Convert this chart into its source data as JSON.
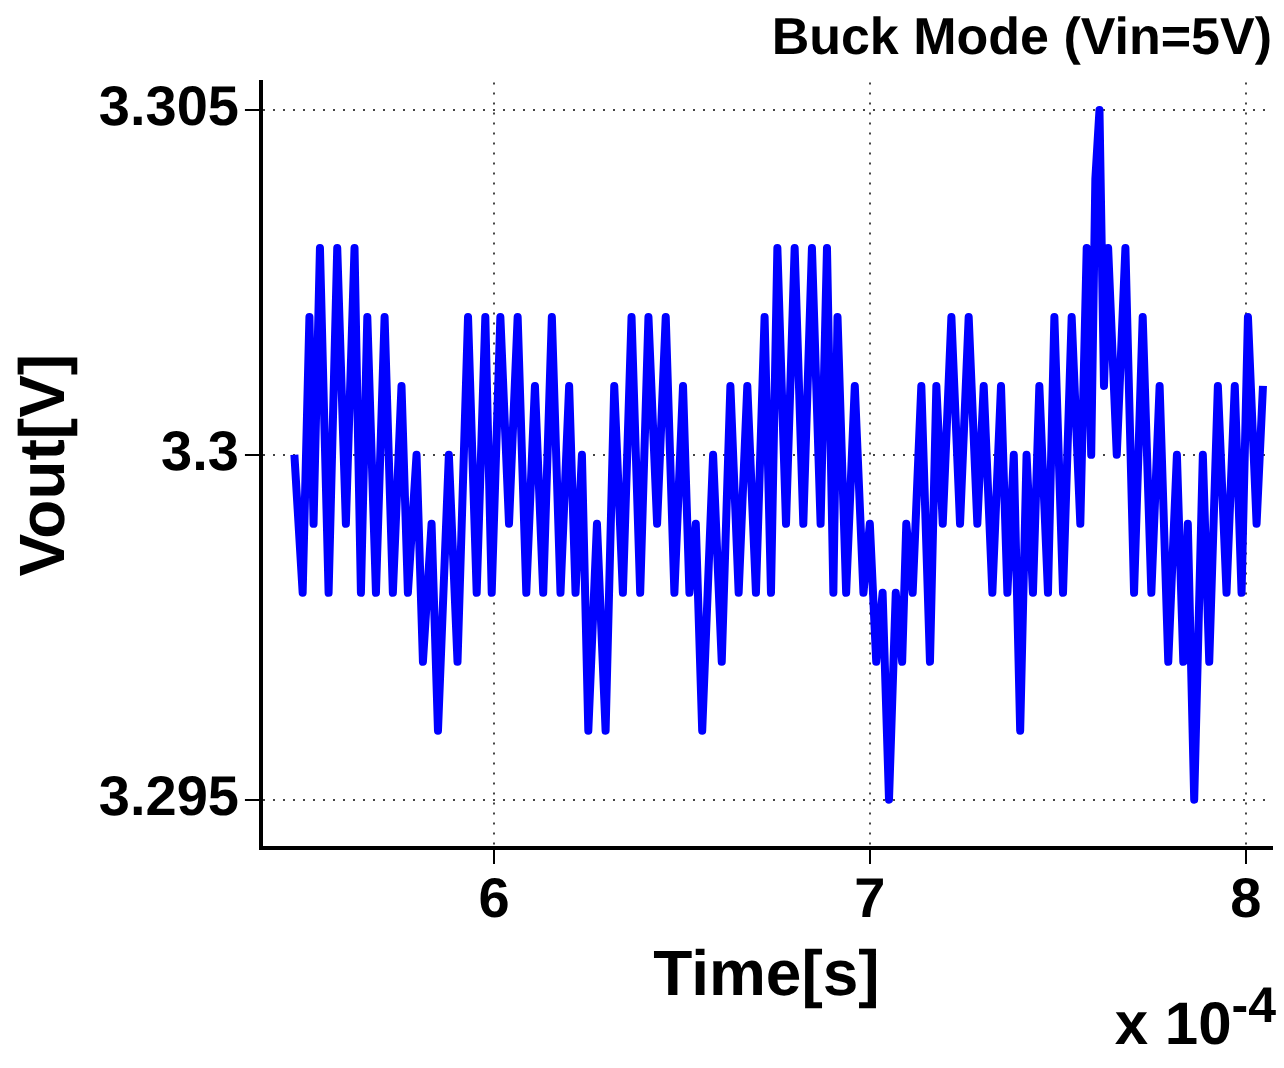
{
  "chart_data": {
    "type": "line",
    "title": "Buck Mode (Vin=5V)",
    "xlabel": "Time[s]",
    "ylabel": "Vout[V]",
    "annotations": [
      "x 10$^{-4}$"
    ],
    "xlim": [
      5.38,
      8.07
    ],
    "xticks": [
      6,
      7,
      8
    ],
    "ylim": [
      3.2943,
      3.3054
    ],
    "yticks": [
      3.295,
      3.3,
      3.305
    ],
    "grid": true,
    "legend": false,
    "marker": "none",
    "line_style": "solid",
    "series": [
      {
        "color": "#0000ff",
        "x": [
          5.469,
          5.491,
          5.509,
          5.52,
          5.537,
          5.56,
          5.583,
          5.606,
          5.629,
          5.646,
          5.663,
          5.686,
          5.709,
          5.731,
          5.754,
          5.771,
          5.794,
          5.811,
          5.834,
          5.851,
          5.88,
          5.903,
          5.931,
          5.954,
          5.977,
          5.994,
          6.017,
          6.04,
          6.063,
          6.086,
          6.109,
          6.131,
          6.154,
          6.177,
          6.2,
          6.217,
          6.234,
          6.251,
          6.274,
          6.297,
          6.32,
          6.343,
          6.366,
          6.389,
          6.411,
          6.434,
          6.457,
          6.48,
          6.503,
          6.52,
          6.537,
          6.554,
          6.583,
          6.606,
          6.629,
          6.651,
          6.674,
          6.697,
          6.72,
          6.737,
          6.754,
          6.777,
          6.8,
          6.823,
          6.846,
          6.869,
          6.886,
          6.903,
          6.914,
          6.937,
          6.96,
          6.983,
          7.0,
          7.017,
          7.034,
          7.051,
          7.069,
          7.086,
          7.097,
          7.114,
          7.137,
          7.16,
          7.177,
          7.194,
          7.217,
          7.24,
          7.263,
          7.286,
          7.303,
          7.326,
          7.349,
          7.366,
          7.383,
          7.4,
          7.417,
          7.434,
          7.451,
          7.474,
          7.491,
          7.514,
          7.537,
          7.56,
          7.577,
          7.589,
          7.6,
          7.611,
          7.623,
          7.634,
          7.657,
          7.68,
          7.703,
          7.726,
          7.749,
          7.771,
          7.794,
          7.817,
          7.834,
          7.846,
          7.863,
          7.886,
          7.903,
          7.926,
          7.949,
          7.971,
          7.989,
          8.006,
          8.029,
          8.046
        ],
        "values": [
          3.3,
          3.298,
          3.302,
          3.299,
          3.303,
          3.298,
          3.303,
          3.299,
          3.303,
          3.298,
          3.302,
          3.298,
          3.302,
          3.298,
          3.301,
          3.298,
          3.3,
          3.297,
          3.299,
          3.296,
          3.3,
          3.297,
          3.302,
          3.298,
          3.302,
          3.298,
          3.302,
          3.299,
          3.302,
          3.298,
          3.301,
          3.298,
          3.302,
          3.298,
          3.301,
          3.298,
          3.3,
          3.296,
          3.299,
          3.296,
          3.301,
          3.298,
          3.302,
          3.298,
          3.302,
          3.299,
          3.302,
          3.298,
          3.301,
          3.298,
          3.299,
          3.296,
          3.3,
          3.297,
          3.301,
          3.298,
          3.301,
          3.298,
          3.302,
          3.298,
          3.303,
          3.299,
          3.303,
          3.299,
          3.303,
          3.299,
          3.303,
          3.298,
          3.302,
          3.298,
          3.301,
          3.298,
          3.299,
          3.297,
          3.298,
          3.295,
          3.298,
          3.297,
          3.299,
          3.298,
          3.301,
          3.297,
          3.301,
          3.299,
          3.302,
          3.299,
          3.302,
          3.299,
          3.301,
          3.298,
          3.301,
          3.298,
          3.3,
          3.296,
          3.3,
          3.298,
          3.301,
          3.298,
          3.302,
          3.298,
          3.302,
          3.299,
          3.303,
          3.3,
          3.304,
          3.305,
          3.301,
          3.303,
          3.3,
          3.303,
          3.298,
          3.302,
          3.298,
          3.301,
          3.297,
          3.3,
          3.297,
          3.299,
          3.295,
          3.3,
          3.297,
          3.301,
          3.298,
          3.301,
          3.298,
          3.302,
          3.299,
          3.301
        ]
      }
    ]
  }
}
